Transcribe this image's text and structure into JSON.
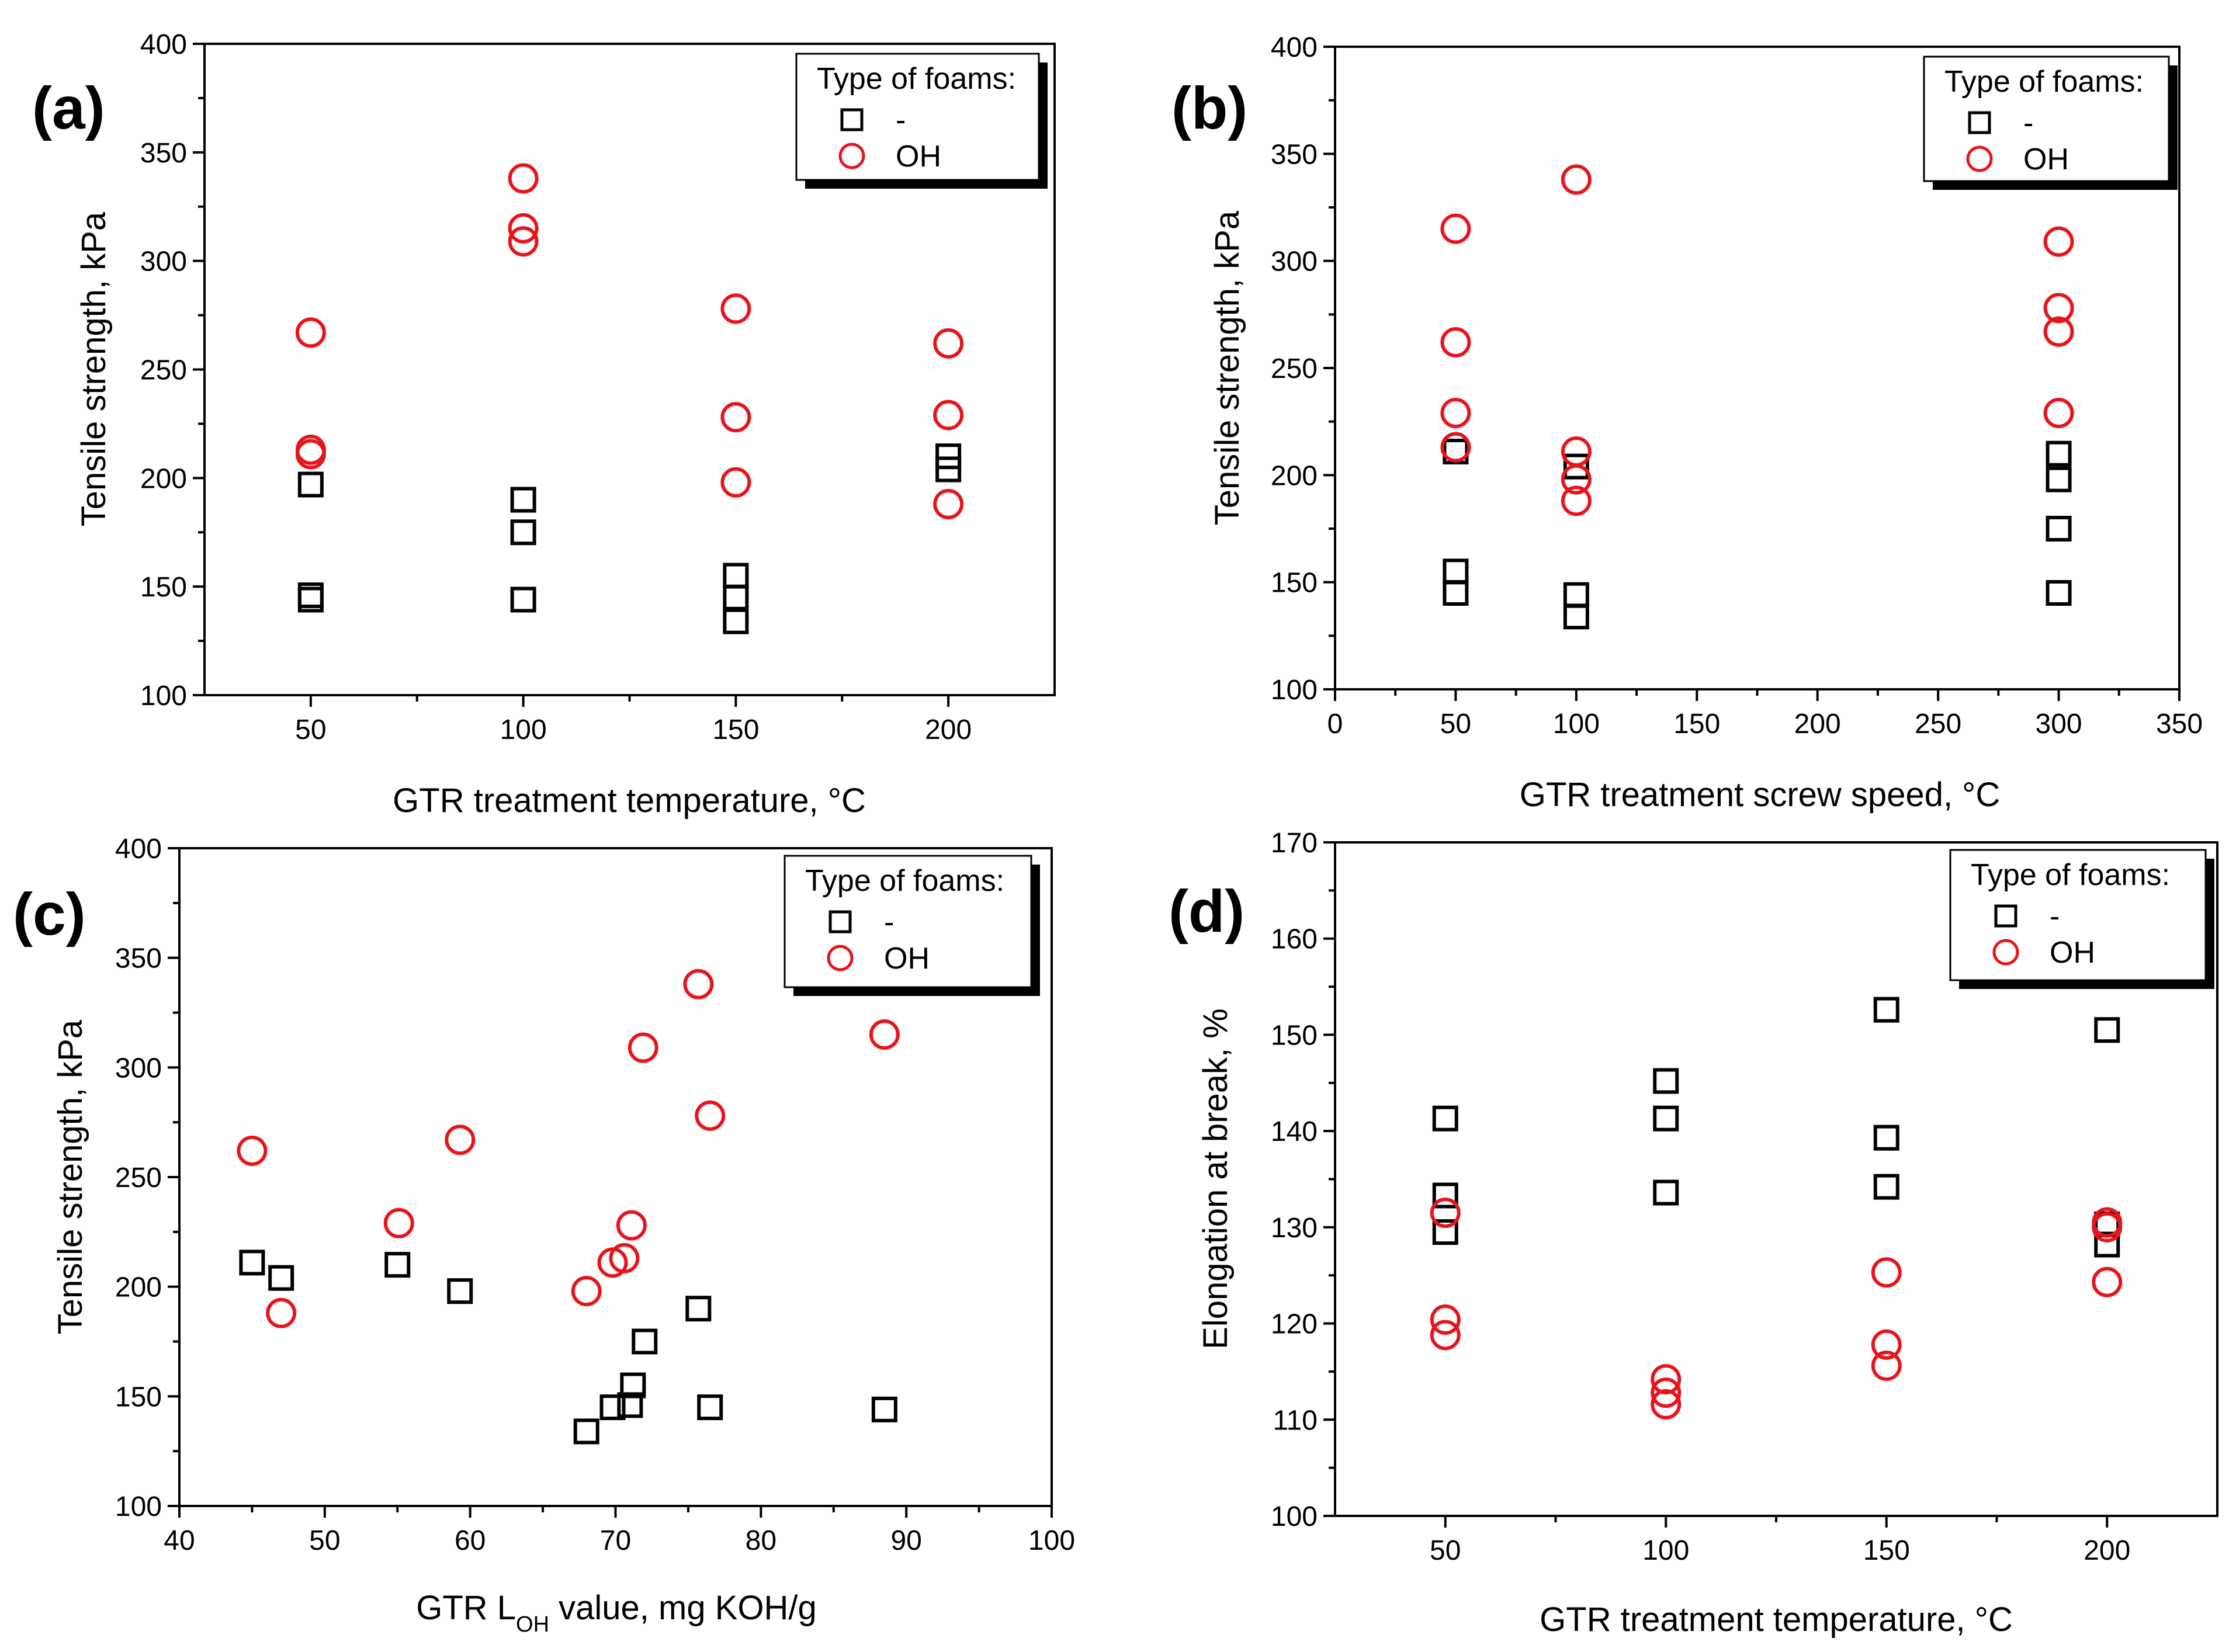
{
  "figure": {
    "colors": {
      "square": "#000000",
      "circle": "#e8141b",
      "axis": "#000000",
      "background": "#ffffff"
    }
  },
  "chart_data": [
    {
      "id": "a",
      "panel_label": "(a)",
      "type": "scatter",
      "xlabel": "GTR treatment temperature, °C",
      "ylabel": "Tensile strength, kPa",
      "xlim": [
        25,
        225
      ],
      "ylim": [
        100,
        400
      ],
      "x_ticks": [
        50,
        100,
        150,
        200
      ],
      "y_ticks": [
        100,
        150,
        200,
        250,
        300,
        350,
        400
      ],
      "legend": {
        "title": "Type of foams:",
        "position": "top-right"
      },
      "series": [
        {
          "name": "-",
          "marker": "square",
          "color": "#000000",
          "points": [
            [
              50,
              197
            ],
            [
              50,
              146
            ],
            [
              50,
              144
            ],
            [
              100,
              190
            ],
            [
              100,
              175
            ],
            [
              100,
              144
            ],
            [
              150,
              155
            ],
            [
              150,
              145
            ],
            [
              150,
              134
            ],
            [
              200,
              210
            ],
            [
              200,
              204
            ]
          ]
        },
        {
          "name": "OH",
          "marker": "circle",
          "color": "#e8141b",
          "points": [
            [
              50,
              267
            ],
            [
              50,
              213
            ],
            [
              50,
              211
            ],
            [
              100,
              338
            ],
            [
              100,
              315
            ],
            [
              100,
              309
            ],
            [
              150,
              278
            ],
            [
              150,
              228
            ],
            [
              150,
              198
            ],
            [
              200,
              262
            ],
            [
              200,
              229
            ],
            [
              200,
              188
            ]
          ]
        }
      ]
    },
    {
      "id": "b",
      "panel_label": "(b)",
      "type": "scatter",
      "xlabel": "GTR treatment screw speed, °C",
      "ylabel": "Tensile strength, kPa",
      "xlim": [
        0,
        350
      ],
      "ylim": [
        100,
        400
      ],
      "x_ticks": [
        0,
        50,
        100,
        150,
        200,
        250,
        300,
        350
      ],
      "y_ticks": [
        100,
        150,
        200,
        250,
        300,
        350,
        400
      ],
      "legend": {
        "title": "Type of foams:",
        "position": "top-right"
      },
      "series": [
        {
          "name": "-",
          "marker": "square",
          "color": "#000000",
          "points": [
            [
              50,
              211
            ],
            [
              50,
              155
            ],
            [
              50,
              145
            ],
            [
              100,
              204
            ],
            [
              100,
              144
            ],
            [
              100,
              134
            ],
            [
              300,
              210
            ],
            [
              300,
              198
            ],
            [
              300,
              175
            ],
            [
              300,
              145
            ]
          ]
        },
        {
          "name": "OH",
          "marker": "circle",
          "color": "#e8141b",
          "points": [
            [
              50,
              315
            ],
            [
              50,
              262
            ],
            [
              50,
              229
            ],
            [
              50,
              213
            ],
            [
              100,
              338
            ],
            [
              100,
              211
            ],
            [
              100,
              198
            ],
            [
              100,
              188
            ],
            [
              300,
              309
            ],
            [
              300,
              278
            ],
            [
              300,
              267
            ],
            [
              300,
              229
            ]
          ]
        }
      ]
    },
    {
      "id": "c",
      "panel_label": "(c)",
      "type": "scatter",
      "xlabel_main": "GTR L",
      "xlabel_sub": "OH",
      "xlabel_rest": " value, mg KOH/g",
      "ylabel": "Tensile strength, kPa",
      "xlim": [
        40,
        100
      ],
      "ylim": [
        100,
        400
      ],
      "x_ticks": [
        40,
        50,
        60,
        70,
        80,
        90,
        100
      ],
      "y_ticks": [
        100,
        150,
        200,
        250,
        300,
        350,
        400
      ],
      "legend": {
        "title": "Type of foams:",
        "position": "top-right"
      },
      "series": [
        {
          "name": "-",
          "marker": "square",
          "color": "#000000",
          "points": [
            [
              45,
              211
            ],
            [
              47,
              204
            ],
            [
              55,
              210
            ],
            [
              59.3,
              198
            ],
            [
              68,
              134
            ],
            [
              69.8,
              145
            ],
            [
              71,
              146
            ],
            [
              71.2,
              155
            ],
            [
              72,
              175
            ],
            [
              75.7,
              190
            ],
            [
              76.5,
              145
            ],
            [
              88.5,
              144
            ]
          ]
        },
        {
          "name": "OH",
          "marker": "circle",
          "color": "#e8141b",
          "points": [
            [
              45,
              262
            ],
            [
              47,
              188
            ],
            [
              55.1,
              229
            ],
            [
              59.3,
              267
            ],
            [
              68,
              198
            ],
            [
              69.8,
              211
            ],
            [
              70.6,
              213
            ],
            [
              71.1,
              228
            ],
            [
              71.9,
              309
            ],
            [
              75.7,
              338
            ],
            [
              76.5,
              278
            ],
            [
              88.5,
              315
            ]
          ]
        }
      ]
    },
    {
      "id": "d",
      "panel_label": "(d)",
      "type": "scatter",
      "xlabel": "GTR treatment temperature, °C",
      "ylabel": "Elongation at break, %",
      "xlim": [
        25,
        225
      ],
      "ylim": [
        100,
        170
      ],
      "x_ticks": [
        50,
        100,
        150,
        200
      ],
      "y_ticks": [
        100,
        110,
        120,
        130,
        140,
        150,
        160,
        170
      ],
      "legend": {
        "title": "Type of foams:",
        "position": "top-right"
      },
      "series": [
        {
          "name": "-",
          "marker": "square",
          "color": "#000000",
          "points": [
            [
              50,
              141.3
            ],
            [
              50,
              133.3
            ],
            [
              50,
              129.5
            ],
            [
              100,
              145.2
            ],
            [
              100,
              141.3
            ],
            [
              100,
              133.6
            ],
            [
              150,
              152.6
            ],
            [
              150,
              139.3
            ],
            [
              150,
              134.2
            ],
            [
              200,
              150.5
            ],
            [
              200,
              130.3
            ],
            [
              200,
              128.2
            ]
          ]
        },
        {
          "name": "OH",
          "marker": "circle",
          "color": "#e8141b",
          "points": [
            [
              50,
              131.5
            ],
            [
              50,
              120.4
            ],
            [
              50,
              118.8
            ],
            [
              100,
              114.2
            ],
            [
              100,
              112.8
            ],
            [
              100,
              111.6
            ],
            [
              150,
              125.3
            ],
            [
              150,
              117.8
            ],
            [
              150,
              115.6
            ],
            [
              200,
              130.5
            ],
            [
              200,
              130.0
            ],
            [
              200,
              124.3
            ]
          ]
        }
      ]
    }
  ]
}
